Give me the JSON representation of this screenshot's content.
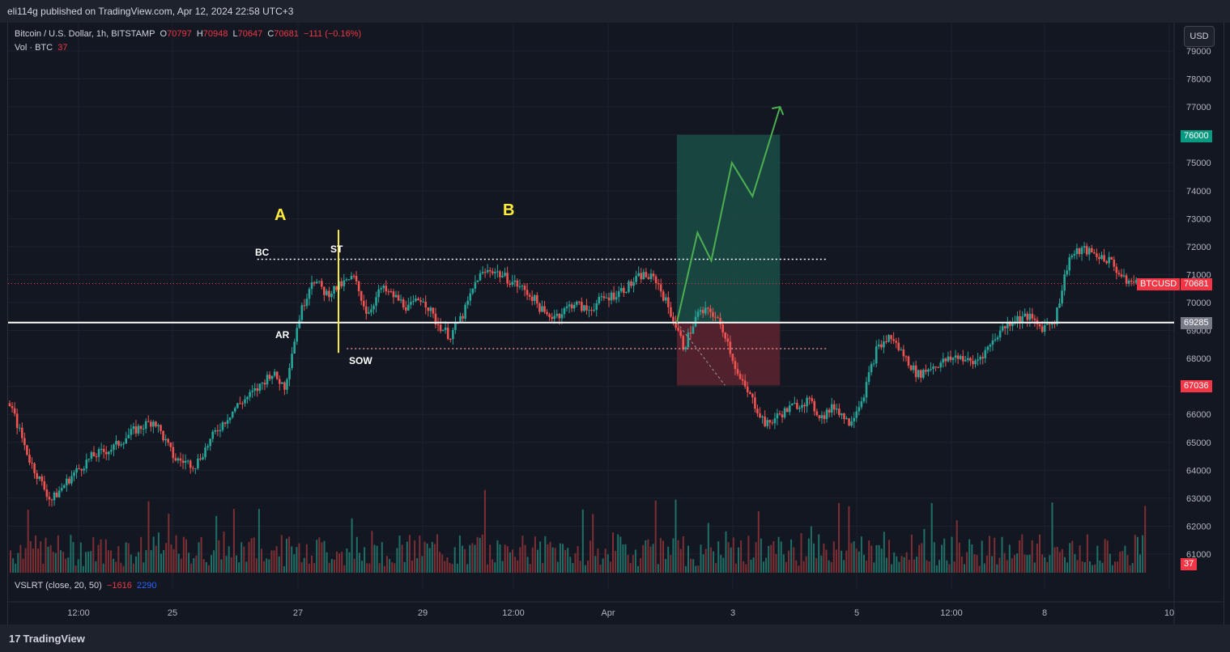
{
  "publish_line": "eli114g published on TradingView.com, Apr 12, 2024 22:58 UTC+3",
  "legend": {
    "symbol": "Bitcoin / U.S. Dollar, 1h, BITSTAMP",
    "o_label": "O",
    "o": "70797",
    "h_label": "H",
    "h": "70948",
    "l_label": "L",
    "l": "70647",
    "c_label": "C",
    "c": "70681",
    "change": "−111 (−0.16%)",
    "vol_label": "Vol · BTC",
    "vol": "37"
  },
  "indicator": {
    "label": "VSLRT (close, 20, 50)",
    "v1": "−1616",
    "v2": "2290"
  },
  "currency_button": "USD",
  "price_axis": [
    "79000",
    "78000",
    "77000",
    "76000",
    "75000",
    "74000",
    "73000",
    "72000",
    "71000",
    "70000",
    "69000",
    "68000",
    "67000",
    "66000",
    "65000",
    "64000",
    "63000",
    "62000",
    "61000"
  ],
  "time_axis": [
    "12:00",
    "25",
    "27",
    "29",
    "12:00",
    "Apr",
    "3",
    "5",
    "12:00",
    "8",
    "10"
  ],
  "badges": {
    "target": "76000",
    "symbol_tag": "BTCUSD",
    "last_price": "70681",
    "entry": "69285",
    "stop": "67036",
    "volume": "37"
  },
  "annotations": {
    "A": "A",
    "B": "B",
    "BC": "BC",
    "ST": "ST",
    "AR": "AR",
    "SOW": "SOW"
  },
  "brand": "TradingView",
  "colors": {
    "up": "#26a69a",
    "down": "#ef5350",
    "target_zone": "#1b4d46",
    "stop_zone": "#5a2230",
    "accent_yellow": "#ffeb3b",
    "projection": "#4caf50"
  },
  "chart_data": {
    "type": "candlestick",
    "symbol": "BTCUSD",
    "interval": "1h",
    "ylim": [
      60500,
      79500
    ],
    "levels": {
      "support_line": 69285,
      "range_top": 71550,
      "range_bottom": 68350,
      "last_price": 70681,
      "long_target": 76000,
      "long_entry": 69285,
      "long_stop": 67036
    },
    "price_path": [
      [
        0,
        66400
      ],
      [
        3,
        64300
      ],
      [
        6,
        62900
      ],
      [
        9,
        63800
      ],
      [
        12,
        64500
      ],
      [
        15,
        64800
      ],
      [
        18,
        65400
      ],
      [
        21,
        65800
      ],
      [
        24,
        64400
      ],
      [
        27,
        64200
      ],
      [
        30,
        65400
      ],
      [
        33,
        66300
      ],
      [
        36,
        66900
      ],
      [
        38,
        67500
      ],
      [
        40,
        67000
      ],
      [
        42,
        69400
      ],
      [
        44,
        70900
      ],
      [
        46,
        70300
      ],
      [
        48,
        70600
      ],
      [
        50,
        70900
      ],
      [
        52,
        69600
      ],
      [
        54,
        70500
      ],
      [
        56,
        70200
      ],
      [
        58,
        69800
      ],
      [
        60,
        70200
      ],
      [
        62,
        69300
      ],
      [
        64,
        68800
      ],
      [
        66,
        69600
      ],
      [
        68,
        70900
      ],
      [
        70,
        71200
      ],
      [
        72,
        70900
      ],
      [
        74,
        70600
      ],
      [
        76,
        70200
      ],
      [
        78,
        69500
      ],
      [
        80,
        69600
      ],
      [
        82,
        70000
      ],
      [
        84,
        69700
      ],
      [
        86,
        70100
      ],
      [
        88,
        70300
      ],
      [
        90,
        70600
      ],
      [
        92,
        71000
      ],
      [
        94,
        70800
      ],
      [
        96,
        69700
      ],
      [
        98,
        68400
      ],
      [
        100,
        69600
      ],
      [
        102,
        69700
      ],
      [
        104,
        68900
      ],
      [
        106,
        67300
      ],
      [
        108,
        66500
      ],
      [
        110,
        65600
      ],
      [
        112,
        66000
      ],
      [
        114,
        66300
      ],
      [
        116,
        66500
      ],
      [
        118,
        65900
      ],
      [
        120,
        66300
      ],
      [
        122,
        65700
      ],
      [
        124,
        66600
      ],
      [
        126,
        68300
      ],
      [
        128,
        68800
      ],
      [
        130,
        68100
      ],
      [
        132,
        67400
      ],
      [
        134,
        67700
      ],
      [
        136,
        67900
      ],
      [
        138,
        68100
      ],
      [
        140,
        67800
      ],
      [
        142,
        68300
      ],
      [
        144,
        69000
      ],
      [
        146,
        69400
      ],
      [
        148,
        69500
      ],
      [
        150,
        69100
      ],
      [
        152,
        69400
      ],
      [
        154,
        71600
      ],
      [
        156,
        71900
      ],
      [
        158,
        71700
      ],
      [
        160,
        71500
      ],
      [
        162,
        70800
      ],
      [
        164,
        70681
      ]
    ],
    "projection_path": [
      [
        97,
        69285
      ],
      [
        100,
        72500
      ],
      [
        102,
        71500
      ],
      [
        105,
        75000
      ],
      [
        108,
        73800
      ],
      [
        112,
        77000
      ]
    ],
    "volume_max": 100,
    "volume_labels": {
      "last": "37"
    }
  }
}
